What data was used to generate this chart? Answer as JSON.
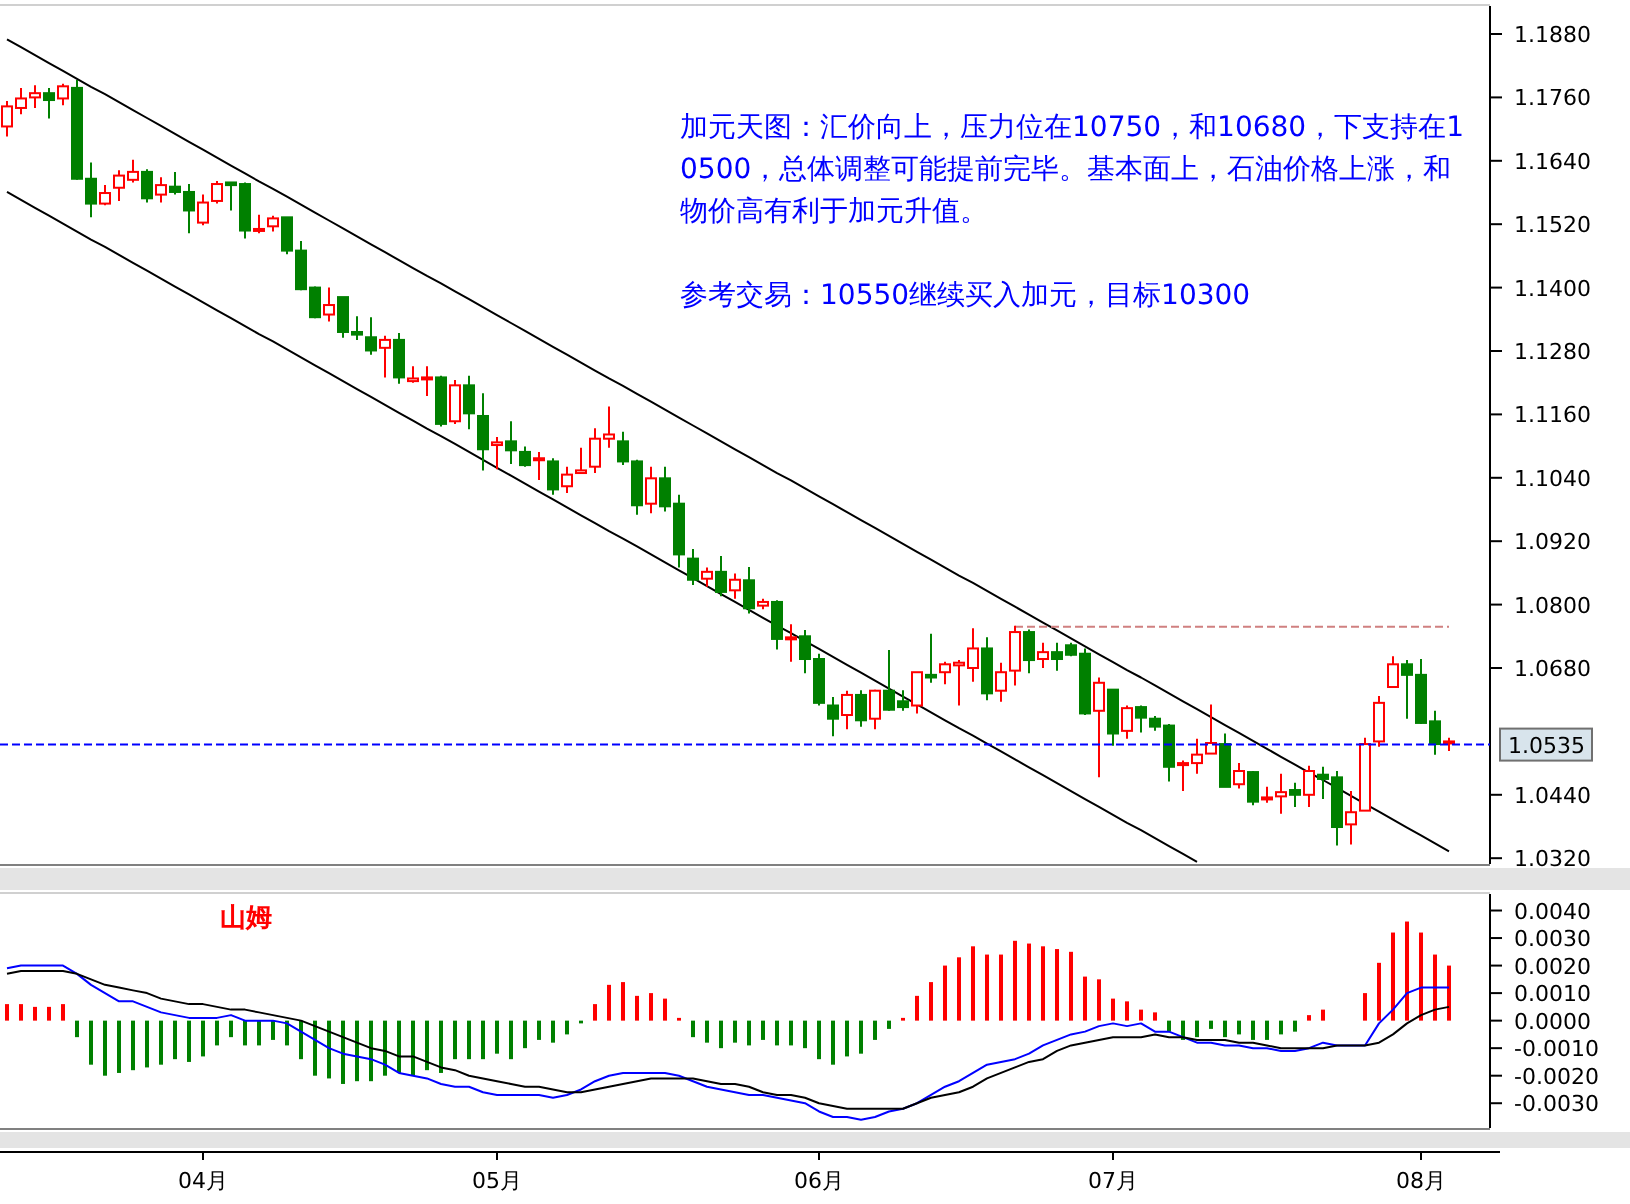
{
  "chart_data": [
    {
      "type": "candlestick",
      "tick_labels": "y",
      "annotations": [
        "加元天图：汇价向上，压力位在10750，和10680，下支持在10500，总体调整可能提前完毕。基本面上，石油价格上涨，和物价高有利于加元升值。",
        "参考交易：10550继续买入加元，目标10300"
      ],
      "categories": [
        null,
        null,
        null,
        null,
        null,
        null,
        null,
        null,
        null,
        null,
        null,
        null,
        null,
        null,
        null,
        null,
        null,
        null,
        null,
        null,
        null,
        null,
        null,
        null,
        null,
        null,
        null,
        null,
        null,
        null,
        null,
        null,
        null,
        null,
        null,
        null,
        null,
        null,
        null,
        null,
        null,
        null,
        null,
        null,
        null,
        null,
        null,
        null,
        null,
        null,
        null,
        null,
        null,
        null,
        null,
        null,
        null,
        null,
        null,
        null,
        null,
        null,
        null,
        null,
        null,
        null,
        null,
        null,
        null,
        null,
        null,
        null,
        null,
        null,
        null,
        null,
        null,
        null,
        null,
        null,
        null,
        null,
        null,
        null,
        null,
        null,
        null,
        null,
        null,
        null,
        null,
        null,
        null,
        null,
        null,
        null,
        null,
        null,
        null,
        null,
        null,
        null,
        null,
        null
      ],
      "ylim": [
        1.0309,
        1.1933
      ],
      "yticks": [
        {
          "value": 1.188,
          "label": "1.1880"
        },
        {
          "value": 1.176,
          "label": "1.1760"
        },
        {
          "value": 1.164,
          "label": "1.1640"
        },
        {
          "value": 1.152,
          "label": "1.1520"
        },
        {
          "value": 1.14,
          "label": "1.1400"
        },
        {
          "value": 1.128,
          "label": "1.1280"
        },
        {
          "value": 1.116,
          "label": "1.1160"
        },
        {
          "value": 1.104,
          "label": "1.1040"
        },
        {
          "value": 1.092,
          "label": "1.0920"
        },
        {
          "value": 1.08,
          "label": "1.0800"
        },
        {
          "value": 1.068,
          "label": "1.0680"
        },
        {
          "value": 1.044,
          "label": "1.0440"
        },
        {
          "value": 1.032,
          "label": "1.0320"
        }
      ],
      "ref_lines": [
        {
          "axis": "y",
          "value": 1.0535,
          "label": "1.0535",
          "color": "#0000ff",
          "line_style": "dashed"
        }
      ],
      "ohlc": [
        [
          1.1705,
          1.1753,
          1.1686,
          1.1743
        ],
        [
          1.174,
          1.1778,
          1.1728,
          1.1758
        ],
        [
          1.176,
          1.1783,
          1.174,
          1.1768
        ],
        [
          1.1768,
          1.1778,
          1.172,
          1.1755
        ],
        [
          1.1758,
          1.1786,
          1.1745,
          1.1781
        ],
        [
          1.1778,
          1.1793,
          1.1604,
          1.1606
        ],
        [
          1.1606,
          1.1637,
          1.1533,
          1.1559
        ],
        [
          1.1559,
          1.1594,
          1.1556,
          1.1579
        ],
        [
          1.1589,
          1.1622,
          1.1564,
          1.1612
        ],
        [
          1.1604,
          1.1642,
          1.1599,
          1.1619
        ],
        [
          1.1619,
          1.1624,
          1.1561,
          1.1569
        ],
        [
          1.1576,
          1.1609,
          1.1561,
          1.1594
        ],
        [
          1.1591,
          1.1619,
          1.1576,
          1.1581
        ],
        [
          1.1581,
          1.1596,
          1.1503,
          1.1546
        ],
        [
          1.1523,
          1.1576,
          1.1518,
          1.1561
        ],
        [
          1.1564,
          1.1602,
          1.1559,
          1.1596
        ],
        [
          1.1599,
          1.1599,
          1.1546,
          1.1594
        ],
        [
          1.1596,
          1.1599,
          1.1493,
          1.1508
        ],
        [
          1.1508,
          1.1538,
          1.1503,
          1.1511
        ],
        [
          1.1516,
          1.1536,
          1.1506,
          1.1531
        ],
        [
          1.1533,
          1.1533,
          1.1463,
          1.147
        ],
        [
          1.147,
          1.1488,
          1.1395,
          1.1397
        ],
        [
          1.14,
          1.1402,
          1.1342,
          1.1344
        ],
        [
          1.1349,
          1.14,
          1.1336,
          1.1367
        ],
        [
          1.1382,
          1.1382,
          1.1305,
          1.1316
        ],
        [
          1.1316,
          1.1346,
          1.1301,
          1.1311
        ],
        [
          1.1306,
          1.1344,
          1.1273,
          1.1281
        ],
        [
          1.1286,
          1.1309,
          1.123,
          1.1301
        ],
        [
          1.1301,
          1.1314,
          1.1218,
          1.123
        ],
        [
          1.1223,
          1.1251,
          1.122,
          1.1228
        ],
        [
          1.1228,
          1.1251,
          1.1195,
          1.123
        ],
        [
          1.123,
          1.1233,
          1.1137,
          1.1142
        ],
        [
          1.1147,
          1.1225,
          1.1142,
          1.1215
        ],
        [
          1.1215,
          1.1233,
          1.1132,
          1.1162
        ],
        [
          1.1157,
          1.12,
          1.1054,
          1.1094
        ],
        [
          1.1102,
          1.1117,
          1.1056,
          1.1107
        ],
        [
          1.1109,
          1.1147,
          1.1066,
          1.1092
        ],
        [
          1.1089,
          1.1099,
          1.1061,
          1.1064
        ],
        [
          1.1074,
          1.1089,
          1.1036,
          1.1077
        ],
        [
          1.1071,
          1.1077,
          1.1008,
          1.1018
        ],
        [
          1.1024,
          1.1061,
          1.1011,
          1.1046
        ],
        [
          1.1049,
          1.1097,
          1.1049,
          1.1054
        ],
        [
          1.1061,
          1.1134,
          1.1049,
          1.1114
        ],
        [
          1.1114,
          1.1175,
          1.1097,
          1.1122
        ],
        [
          1.1109,
          1.1127,
          1.1064,
          1.1071
        ],
        [
          1.1071,
          1.1074,
          1.097,
          1.0988
        ],
        [
          1.0991,
          1.1061,
          1.0973,
          1.1039
        ],
        [
          1.1039,
          1.1061,
          1.0976,
          1.0986
        ],
        [
          1.0991,
          1.1008,
          1.087,
          1.0895
        ],
        [
          1.0887,
          1.0905,
          1.0837,
          1.0847
        ],
        [
          1.0849,
          1.087,
          1.0834,
          1.0862
        ],
        [
          1.0862,
          1.0892,
          1.0816,
          1.0824
        ],
        [
          1.0827,
          1.0859,
          1.0811,
          1.0847
        ],
        [
          1.0846,
          1.0871,
          1.0783,
          1.0793
        ],
        [
          1.0798,
          1.0811,
          1.0791,
          1.0805
        ],
        [
          1.0805,
          1.0808,
          1.0715,
          1.0735
        ],
        [
          1.0735,
          1.0763,
          1.0692,
          1.0738
        ],
        [
          1.074,
          1.0752,
          1.067,
          1.0697
        ],
        [
          1.0697,
          1.0707,
          1.0609,
          1.0614
        ],
        [
          1.0609,
          1.0625,
          1.0551,
          1.0584
        ],
        [
          1.0591,
          1.0637,
          1.0564,
          1.0629
        ],
        [
          1.0629,
          1.0638,
          1.0569,
          1.0581
        ],
        [
          1.0584,
          1.0639,
          1.0564,
          1.0637
        ],
        [
          1.0637,
          1.0714,
          1.0599,
          1.0601
        ],
        [
          1.0617,
          1.0638,
          1.0599,
          1.0606
        ],
        [
          1.0609,
          1.0672,
          1.0594,
          1.0672
        ],
        [
          1.0667,
          1.0745,
          1.0652,
          1.0662
        ],
        [
          1.0672,
          1.0692,
          1.0649,
          1.0687
        ],
        [
          1.0685,
          1.0695,
          1.0609,
          1.069
        ],
        [
          1.068,
          1.0755,
          1.0654,
          1.0717
        ],
        [
          1.0717,
          1.0738,
          1.0619,
          1.0632
        ],
        [
          1.0637,
          1.069,
          1.0616,
          1.0672
        ],
        [
          1.0675,
          1.076,
          1.0647,
          1.0748
        ],
        [
          1.0748,
          1.0753,
          1.067,
          1.0695
        ],
        [
          1.0697,
          1.0728,
          1.068,
          1.071
        ],
        [
          1.071,
          1.0728,
          1.0675,
          1.0697
        ],
        [
          1.0723,
          1.0728,
          1.0702,
          1.0705
        ],
        [
          1.0707,
          1.0717,
          1.0591,
          1.0594
        ],
        [
          1.0599,
          1.0662,
          1.0473,
          1.0652
        ],
        [
          1.0639,
          1.0639,
          1.0533,
          1.0556
        ],
        [
          1.0561,
          1.0609,
          1.0546,
          1.0604
        ],
        [
          1.0606,
          1.0609,
          1.0558,
          1.0586
        ],
        [
          1.0584,
          1.0589,
          1.0561,
          1.0569
        ],
        [
          1.0571,
          1.0574,
          1.0465,
          1.0493
        ],
        [
          1.0498,
          1.0505,
          1.0447,
          1.05
        ],
        [
          1.05,
          1.0546,
          1.048,
          1.0516
        ],
        [
          1.0518,
          1.0611,
          1.0518,
          1.0538
        ],
        [
          1.0536,
          1.0556,
          1.0455,
          1.0455
        ],
        [
          1.046,
          1.05,
          1.0452,
          1.0485
        ],
        [
          1.0483,
          1.0485,
          1.042,
          1.0427
        ],
        [
          1.0432,
          1.0455,
          1.0425,
          1.0435
        ],
        [
          1.0437,
          1.048,
          1.0404,
          1.0445
        ],
        [
          1.0449,
          1.0463,
          1.0417,
          1.044
        ],
        [
          1.044,
          1.0495,
          1.0417,
          1.0485
        ],
        [
          1.0478,
          1.0493,
          1.0432,
          1.047
        ],
        [
          1.0473,
          1.0485,
          1.0344,
          1.0379
        ],
        [
          1.0384,
          1.0447,
          1.0346,
          1.0407
        ],
        [
          1.041,
          1.0548,
          1.041,
          1.0536
        ],
        [
          1.0541,
          1.0627,
          1.0531,
          1.0614
        ],
        [
          1.0644,
          1.0702,
          1.0644,
          1.0687
        ],
        [
          1.0687,
          1.0695,
          1.0584,
          1.0667
        ],
        [
          1.0667,
          1.0697,
          1.0574,
          1.0576
        ],
        [
          1.0579,
          1.0599,
          1.0516,
          1.0536
        ],
        [
          1.0538,
          1.0548,
          1.0523,
          1.0541
        ]
      ],
      "colors": [
        "#ff0000",
        "#ff0000",
        "#ff0000",
        "#008000",
        "#ff0000",
        "#008000",
        "#008000",
        "#ff0000",
        "#ff0000",
        "#ff0000",
        "#008000",
        "#ff0000",
        "#008000",
        "#008000",
        "#ff0000",
        "#ff0000",
        "#008000",
        "#008000",
        "#ff0000",
        "#ff0000",
        "#008000",
        "#008000",
        "#008000",
        "#ff0000",
        "#008000",
        "#008000",
        "#008000",
        "#ff0000",
        "#008000",
        "#ff0000",
        "#ff0000",
        "#008000",
        "#ff0000",
        "#008000",
        "#008000",
        "#ff0000",
        "#008000",
        "#008000",
        "#ff0000",
        "#008000",
        "#ff0000",
        "#ff0000",
        "#ff0000",
        "#ff0000",
        "#008000",
        "#008000",
        "#ff0000",
        "#008000",
        "#008000",
        "#008000",
        "#ff0000",
        "#008000",
        "#ff0000",
        "#008000",
        "#ff0000",
        "#008000",
        "#ff0000",
        "#008000",
        "#008000",
        "#008000",
        "#ff0000",
        "#008000",
        "#ff0000",
        "#008000",
        "#008000",
        "#ff0000",
        "#008000",
        "#ff0000",
        "#ff0000",
        "#ff0000",
        "#008000",
        "#ff0000",
        "#ff0000",
        "#008000",
        "#ff0000",
        "#008000",
        "#008000",
        "#008000",
        "#ff0000",
        "#008000",
        "#ff0000",
        "#008000",
        "#008000",
        "#008000",
        "#ff0000",
        "#ff0000",
        "#ff0000",
        "#008000",
        "#ff0000",
        "#008000",
        "#ff0000",
        "#ff0000",
        "#008000",
        "#ff0000",
        "#008000",
        "#008000",
        "#ff0000",
        "#ff0000",
        "#ff0000",
        "#ff0000",
        "#008000",
        "#008000",
        "#008000",
        "#ff0000"
      ],
      "series": [
        {
          "type": "line",
          "color": "#000000",
          "values": [
            1.187,
            1.1855,
            1.184,
            1.1825,
            1.181,
            1.1795,
            1.178,
            1.1766,
            1.1751,
            1.1736,
            1.1721,
            1.1706,
            1.1691,
            1.1676,
            1.1661,
            1.1646,
            1.1631,
            1.1616,
            1.1601,
            1.1587,
            1.1572,
            1.1557,
            1.1542,
            1.1527,
            1.1512,
            1.1497,
            1.1482,
            1.1467,
            1.1452,
            1.1437,
            1.1422,
            1.1408,
            1.1393,
            1.1378,
            1.1363,
            1.1348,
            1.1333,
            1.1318,
            1.1303,
            1.1288,
            1.1273,
            1.1258,
            1.1243,
            1.1228,
            1.1214,
            1.1199,
            1.1184,
            1.1169,
            1.1154,
            1.1139,
            1.1124,
            1.1109,
            1.1094,
            1.1079,
            1.1064,
            1.1049,
            1.1035,
            1.102,
            1.1005,
            1.099,
            1.0975,
            1.096,
            1.0945,
            1.093,
            1.0915,
            1.09,
            1.0885,
            1.087,
            1.0855,
            1.0841,
            1.0826,
            1.0811,
            1.0796,
            1.0781,
            1.0766,
            1.0751,
            1.0736,
            1.0721,
            1.0706,
            1.0691,
            1.0676,
            1.0662,
            1.0647,
            1.0632,
            1.0617,
            1.0602,
            1.0587,
            1.0572,
            1.0557,
            1.0542,
            1.0527,
            1.0512,
            1.0497,
            1.0482,
            1.0468,
            1.0453,
            1.0438,
            1.0423,
            1.0408,
            1.0393,
            1.0378,
            1.0363,
            1.0348,
            1.0333
          ]
        },
        {
          "type": "line",
          "color": "#000000",
          "values": [
            1.1581,
            1.1566,
            1.1551,
            1.1536,
            1.1521,
            1.1506,
            1.1491,
            1.1477,
            1.1462,
            1.1447,
            1.1432,
            1.1417,
            1.1402,
            1.1387,
            1.1372,
            1.1357,
            1.1342,
            1.1327,
            1.1312,
            1.1298,
            1.1283,
            1.1268,
            1.1253,
            1.1238,
            1.1223,
            1.1208,
            1.1193,
            1.1178,
            1.1163,
            1.1148,
            1.1133,
            1.1119,
            1.1104,
            1.1089,
            1.1074,
            1.1059,
            1.1044,
            1.1029,
            1.1014,
            1.0999,
            1.0984,
            1.0969,
            1.0954,
            1.0939,
            1.0925,
            1.091,
            1.0895,
            1.088,
            1.0865,
            1.085,
            1.0835,
            1.082,
            1.0805,
            1.079,
            1.0775,
            1.076,
            1.0746,
            1.0731,
            1.0716,
            1.0701,
            1.0686,
            1.0671,
            1.0656,
            1.0641,
            1.0626,
            1.0611,
            1.0596,
            1.0581,
            1.0566,
            1.0552,
            1.0537,
            1.0522,
            1.0507,
            1.0492,
            1.0477,
            1.0462,
            1.0447,
            1.0432,
            1.0417,
            1.0402,
            1.0387,
            1.0373,
            1.0358,
            1.0343,
            1.0328,
            1.0313,
            null,
            null,
            null,
            null,
            null,
            null,
            null,
            null,
            null,
            null,
            null,
            null,
            null,
            null,
            null,
            null,
            null,
            null
          ]
        },
        {
          "type": "line",
          "color": "#d08080",
          "line_style": "dashed",
          "values": [
            null,
            null,
            null,
            null,
            null,
            null,
            null,
            null,
            null,
            null,
            null,
            null,
            null,
            null,
            null,
            null,
            null,
            null,
            null,
            null,
            null,
            null,
            null,
            null,
            null,
            null,
            null,
            null,
            null,
            null,
            null,
            null,
            null,
            null,
            null,
            null,
            null,
            null,
            null,
            null,
            null,
            null,
            null,
            null,
            null,
            null,
            null,
            null,
            null,
            null,
            null,
            null,
            null,
            null,
            null,
            null,
            null,
            null,
            null,
            null,
            null,
            null,
            null,
            null,
            null,
            null,
            null,
            null,
            null,
            null,
            null,
            null,
            1.0758,
            1.0758,
            1.0758,
            1.0758,
            1.0758,
            1.0758,
            1.0758,
            1.0758,
            1.0758,
            1.0758,
            1.0758,
            1.0758,
            1.0758,
            1.0758,
            1.0758,
            1.0758,
            1.0758,
            1.0758,
            1.0758,
            1.0758,
            1.0758,
            1.0758,
            1.0758,
            1.0758,
            1.0758,
            1.0758,
            1.0758,
            1.0758,
            1.0758,
            1.0758,
            1.0758,
            1.0758
          ]
        }
      ]
    },
    {
      "type": "bar",
      "annotations": [
        "山姆"
      ],
      "categories": [
        null,
        null,
        null,
        null,
        null,
        null,
        null,
        null,
        null,
        null,
        null,
        null,
        null,
        null,
        "04月",
        null,
        null,
        null,
        null,
        null,
        null,
        null,
        null,
        null,
        null,
        null,
        null,
        null,
        null,
        null,
        null,
        null,
        null,
        null,
        null,
        "05月",
        null,
        null,
        null,
        null,
        null,
        null,
        null,
        null,
        null,
        null,
        null,
        null,
        null,
        null,
        null,
        null,
        null,
        null,
        null,
        null,
        null,
        null,
        "06月",
        null,
        null,
        null,
        null,
        null,
        null,
        null,
        null,
        null,
        null,
        null,
        null,
        null,
        null,
        null,
        null,
        null,
        null,
        null,
        null,
        "07月",
        null,
        null,
        null,
        null,
        null,
        null,
        null,
        null,
        null,
        null,
        null,
        null,
        null,
        null,
        null,
        null,
        null,
        null,
        null,
        null,
        null,
        "08月",
        null,
        null
      ],
      "ylim": [
        -0.0039,
        0.0046
      ],
      "yticks": [
        {
          "value": 0.004,
          "label": "0.0040"
        },
        {
          "value": 0.003,
          "label": "0.0030"
        },
        {
          "value": 0.002,
          "label": "0.0020"
        },
        {
          "value": 0.001,
          "label": "0.0010"
        },
        {
          "value": 0,
          "label": "0.0000"
        },
        {
          "value": -0.001,
          "label": "-0.0010"
        },
        {
          "value": -0.002,
          "label": "-0.0020"
        },
        {
          "value": -0.003,
          "label": "-0.0030"
        }
      ],
      "series": [
        {
          "type": "bar",
          "values": [
            0.0006,
            0.0006,
            0.0005,
            0.0005,
            0.0006,
            -0.0006,
            -0.0016,
            -0.002,
            -0.0019,
            -0.0018,
            -0.0017,
            -0.0016,
            -0.0014,
            -0.0015,
            -0.0013,
            -0.0009,
            -0.0006,
            -0.0009,
            -0.0009,
            -0.0007,
            -0.0009,
            -0.0014,
            -0.002,
            -0.0021,
            -0.0023,
            -0.0022,
            -0.0022,
            -0.002,
            -0.0019,
            -0.002,
            -0.0018,
            -0.0019,
            -0.0014,
            -0.0014,
            -0.0014,
            -0.0012,
            -0.0014,
            -0.001,
            -0.0007,
            -0.0008,
            -0.0005,
            -0.0001,
            0.0006,
            0.0013,
            0.0014,
            0.0009,
            0.001,
            0.0008,
            0.0001,
            -0.0006,
            -0.0008,
            -0.001,
            -0.0008,
            -0.0009,
            -0.0007,
            -0.0009,
            -0.0009,
            -0.001,
            -0.0014,
            -0.0016,
            -0.0013,
            -0.0012,
            -0.0007,
            -0.0003,
            0.0001,
            0.0009,
            0.0014,
            0.002,
            0.0023,
            0.0027,
            0.0024,
            0.0024,
            0.0029,
            0.0028,
            0.0027,
            0.0026,
            0.0025,
            0.0016,
            0.0015,
            0.0008,
            0.0007,
            0.0004,
            0.0003,
            -0.0004,
            -0.0007,
            -0.0006,
            -0.0003,
            -0.0006,
            -0.0005,
            -0.0007,
            -0.0007,
            -0.0005,
            -0.0004,
            0.0002,
            0.0004,
            0,
            0,
            0.001,
            0.0021,
            0.0032,
            0.0036,
            0.0032,
            0.0024,
            0.002
          ],
          "colors": [
            "#ff0000",
            "#ff0000",
            "#ff0000",
            "#ff0000",
            "#ff0000",
            "#008000",
            "#008000",
            "#008000",
            "#008000",
            "#008000",
            "#008000",
            "#008000",
            "#008000",
            "#008000",
            "#008000",
            "#008000",
            "#008000",
            "#008000",
            "#008000",
            "#008000",
            "#008000",
            "#008000",
            "#008000",
            "#008000",
            "#008000",
            "#008000",
            "#008000",
            "#008000",
            "#008000",
            "#008000",
            "#008000",
            "#008000",
            "#008000",
            "#008000",
            "#008000",
            "#008000",
            "#008000",
            "#008000",
            "#008000",
            "#008000",
            "#008000",
            "#008000",
            "#ff0000",
            "#ff0000",
            "#ff0000",
            "#ff0000",
            "#ff0000",
            "#ff0000",
            "#ff0000",
            "#008000",
            "#008000",
            "#008000",
            "#008000",
            "#008000",
            "#008000",
            "#008000",
            "#008000",
            "#008000",
            "#008000",
            "#008000",
            "#008000",
            "#008000",
            "#008000",
            "#008000",
            "#ff0000",
            "#ff0000",
            "#ff0000",
            "#ff0000",
            "#ff0000",
            "#ff0000",
            "#ff0000",
            "#ff0000",
            "#ff0000",
            "#ff0000",
            "#ff0000",
            "#ff0000",
            "#ff0000",
            "#ff0000",
            "#ff0000",
            "#ff0000",
            "#ff0000",
            "#ff0000",
            "#ff0000",
            "#008000",
            "#008000",
            "#008000",
            "#008000",
            "#008000",
            "#008000",
            "#008000",
            "#008000",
            "#008000",
            "#008000",
            "#ff0000",
            "#ff0000",
            "#ff0000",
            "#ff0000",
            "#ff0000",
            "#ff0000",
            "#ff0000",
            "#ff0000",
            "#ff0000",
            "#ff0000",
            "#ff0000"
          ]
        },
        {
          "type": "line",
          "color": "#0000ff",
          "values": [
            0.0019,
            0.002,
            0.002,
            0.002,
            0.002,
            0.0017,
            0.0013,
            0.001,
            0.0007,
            0.0007,
            0.0005,
            0.0003,
            0.0002,
            0.0001,
            0.0001,
            0.0001,
            0.0002,
            0,
            0,
            0,
            -0.0001,
            -0.0004,
            -0.0007,
            -0.001,
            -0.0012,
            -0.0013,
            -0.0014,
            -0.0016,
            -0.0019,
            -0.002,
            -0.0021,
            -0.0023,
            -0.0024,
            -0.0024,
            -0.0026,
            -0.0027,
            -0.0027,
            -0.0027,
            -0.0027,
            -0.0028,
            -0.0027,
            -0.0025,
            -0.0022,
            -0.002,
            -0.0019,
            -0.0019,
            -0.0019,
            -0.0019,
            -0.002,
            -0.0022,
            -0.0024,
            -0.0025,
            -0.0026,
            -0.0027,
            -0.0027,
            -0.0028,
            -0.0029,
            -0.003,
            -0.0033,
            -0.0035,
            -0.0035,
            -0.0036,
            -0.0035,
            -0.0033,
            -0.0032,
            -0.003,
            -0.0027,
            -0.0024,
            -0.0022,
            -0.0019,
            -0.0016,
            -0.0015,
            -0.0014,
            -0.0012,
            -0.0009,
            -0.0007,
            -0.0005,
            -0.0004,
            -0.0002,
            -0.0001,
            -0.0002,
            -0.0001,
            -0.0004,
            -0.0004,
            -0.0006,
            -0.0008,
            -0.0008,
            -0.0009,
            -0.0009,
            -0.001,
            -0.001,
            -0.0011,
            -0.0011,
            -0.001,
            -0.0008,
            -0.0009,
            -0.0009,
            -0.0009,
            -0.0001,
            0.0004,
            0.001,
            0.0012,
            0.0012,
            0.0012
          ]
        },
        {
          "type": "line",
          "color": "#000000",
          "values": [
            0.0017,
            0.0018,
            0.0018,
            0.0018,
            0.0018,
            0.0017,
            0.0015,
            0.0013,
            0.0012,
            0.0011,
            0.001,
            0.0008,
            0.0007,
            0.0006,
            0.0006,
            0.0005,
            0.0004,
            0.0004,
            0.0003,
            0.0002,
            0.0001,
            0,
            -0.0002,
            -0.0004,
            -0.0006,
            -0.0008,
            -0.001,
            -0.0011,
            -0.0013,
            -0.0013,
            -0.0015,
            -0.0017,
            -0.0018,
            -0.002,
            -0.0021,
            -0.0022,
            -0.0023,
            -0.0024,
            -0.0024,
            -0.0025,
            -0.0026,
            -0.0026,
            -0.0025,
            -0.0024,
            -0.0023,
            -0.0022,
            -0.0021,
            -0.0021,
            -0.0021,
            -0.0021,
            -0.0022,
            -0.0023,
            -0.0023,
            -0.0024,
            -0.0026,
            -0.0027,
            -0.0027,
            -0.0028,
            -0.003,
            -0.0031,
            -0.0032,
            -0.0032,
            -0.0032,
            -0.0032,
            -0.0032,
            -0.003,
            -0.0028,
            -0.0027,
            -0.0026,
            -0.0024,
            -0.0021,
            -0.0019,
            -0.0017,
            -0.0015,
            -0.0014,
            -0.0011,
            -0.0009,
            -0.0008,
            -0.0007,
            -0.0006,
            -0.0006,
            -0.0006,
            -0.0005,
            -0.0006,
            -0.0006,
            -0.0007,
            -0.0007,
            -0.0007,
            -0.0008,
            -0.0008,
            -0.0009,
            -0.001,
            -0.001,
            -0.001,
            -0.001,
            -0.0009,
            -0.0009,
            -0.0009,
            -0.0008,
            -0.0005,
            -0.0001,
            0.0002,
            0.0004,
            0.0005
          ]
        }
      ]
    }
  ]
}
